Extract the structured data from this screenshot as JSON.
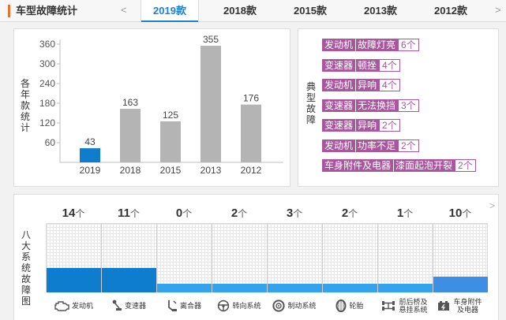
{
  "header": {
    "title": "车型故障统计",
    "prev_arrow": "<",
    "next_arrow": ">",
    "tabs": [
      {
        "label": "2019款",
        "active": true
      },
      {
        "label": "2018款",
        "active": false
      },
      {
        "label": "2015款",
        "active": false
      },
      {
        "label": "2013款",
        "active": false
      },
      {
        "label": "2012款",
        "active": false
      }
    ]
  },
  "year_chart": {
    "side_label": "各年款统计"
  },
  "chart_data": {
    "type": "bar",
    "categories": [
      "2019",
      "2018",
      "2015",
      "2013",
      "2012"
    ],
    "values": [
      43,
      163,
      125,
      355,
      176
    ],
    "highlight_index": 0,
    "highlight_color": "#0e7dce",
    "bar_color": "#b4b4b4",
    "yticks": [
      60,
      120,
      180,
      240,
      300,
      360
    ],
    "ylim": [
      0,
      360
    ],
    "grid": false,
    "title": "",
    "xlabel": "",
    "ylabel": "各年款统计"
  },
  "faults": {
    "side_label": "典型故障",
    "items": [
      {
        "part": "发动机",
        "issue": "故障灯亮",
        "count": "6个"
      },
      {
        "part": "变速器",
        "issue": "顿挫",
        "count": "4个"
      },
      {
        "part": "发动机",
        "issue": "异响",
        "count": "4个"
      },
      {
        "part": "变速器",
        "issue": "无法换挡",
        "count": "3个"
      },
      {
        "part": "变速器",
        "issue": "异响",
        "count": "2个"
      },
      {
        "part": "发动机",
        "issue": "功率不足",
        "count": "2个"
      },
      {
        "part": "车身附件及电器",
        "issue": "漆面起泡开裂",
        "count": "2个"
      }
    ]
  },
  "systems": {
    "side_label": "八大系统故障图",
    "unit": "个",
    "next_arrow": ">",
    "items": [
      {
        "name": "发动机",
        "count": 14,
        "icon": "engine-icon",
        "color": "#0e7dce"
      },
      {
        "name": "变速器",
        "count": 11,
        "icon": "gear-shift-icon",
        "color": "#0e7dce"
      },
      {
        "name": "离合器",
        "count": 0,
        "icon": "clutch-pedal-icon",
        "color": "#33a3ee"
      },
      {
        "name": "转向系统",
        "count": 2,
        "icon": "steering-wheel-icon",
        "color": "#33a3ee"
      },
      {
        "name": "制动系统",
        "count": 3,
        "icon": "brake-disc-icon",
        "color": "#33a3ee"
      },
      {
        "name": "轮胎",
        "count": 2,
        "icon": "tire-icon",
        "color": "#33a3ee"
      },
      {
        "name": "前后桥及悬挂系统",
        "count": 1,
        "icon": "axle-icon",
        "color": "#33a3ee"
      },
      {
        "name": "车身附件及电器",
        "count": 10,
        "icon": "car-battery-icon",
        "color": "#3d8fe6"
      }
    ],
    "bar_levels": [
      0.35,
      0.35,
      0.12,
      0.12,
      0.12,
      0.12,
      0.12,
      0.23
    ]
  }
}
